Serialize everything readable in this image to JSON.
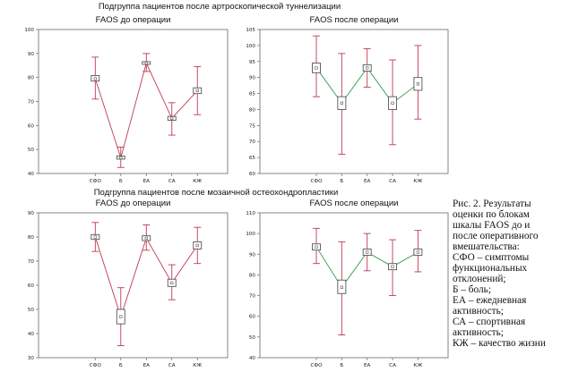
{
  "groups": [
    {
      "title": "Подгруппа пациентов после артроскопической туннелизации"
    },
    {
      "title": "Подгруппа пациентов после мозаичной остеохондропластики"
    }
  ],
  "colors": {
    "whisker": "#c0394f",
    "line_pre": "#c0394f",
    "line_post": "#2e9a4a",
    "box": "#555555"
  },
  "caption": {
    "lines": [
      "Рис. 2. Результаты",
      "оценки по блокам",
      "шкалы FAOS до и",
      "после оперативного",
      "вмешательства:",
      "СФО – симптомы",
      "функциональных",
      "отклонений;",
      "Б – боль;",
      "ЕА – ежедневная",
      "активность;",
      "СА – спортивная",
      "активность;",
      "КЖ – качество жизни"
    ]
  },
  "chart_data": [
    {
      "type": "box",
      "title": "FAOS до операции",
      "group": 0,
      "categories": [
        "СФО",
        "Б",
        "ЕА",
        "СА",
        "КЖ"
      ],
      "ylim": [
        40,
        100
      ],
      "yticks": [
        40,
        50,
        60,
        70,
        80,
        90,
        100
      ],
      "mean": [
        79.5,
        46.5,
        86,
        63,
        74.5
      ],
      "box_low": [
        78.5,
        46,
        85.5,
        62.2,
        73.3
      ],
      "box_high": [
        80.8,
        47.3,
        86.6,
        63.8,
        75.7
      ],
      "whisker_low": [
        71,
        42.5,
        82.5,
        56,
        64.5
      ],
      "whisker_high": [
        88.5,
        51,
        90,
        69.5,
        84.5
      ]
    },
    {
      "type": "box",
      "title": "FAOS после операции",
      "group": 0,
      "categories": [
        "СФО",
        "Б",
        "ЕА",
        "СА",
        "КЖ"
      ],
      "ylim": [
        60,
        105
      ],
      "yticks": [
        60,
        65,
        70,
        75,
        80,
        85,
        90,
        95,
        100,
        105
      ],
      "mean": [
        93,
        82,
        93,
        82,
        88
      ],
      "box_low": [
        91.5,
        80,
        92,
        80,
        86
      ],
      "box_high": [
        94.5,
        84,
        94,
        84,
        90
      ],
      "whisker_low": [
        84,
        66,
        87,
        69,
        77
      ],
      "whisker_high": [
        103,
        97.5,
        99,
        95.5,
        100
      ]
    },
    {
      "type": "box",
      "title": "FAOS до операции",
      "group": 1,
      "categories": [
        "СФО",
        "Б",
        "ЕА",
        "СА",
        "КЖ"
      ],
      "ylim": [
        30,
        90
      ],
      "yticks": [
        30,
        40,
        50,
        60,
        70,
        80,
        90
      ],
      "mean": [
        80,
        47,
        79.5,
        61,
        76.5
      ],
      "box_low": [
        79,
        44,
        78.5,
        59.5,
        75
      ],
      "box_high": [
        81,
        50,
        80.5,
        62.5,
        78
      ],
      "whisker_low": [
        74,
        35,
        74.5,
        54,
        69
      ],
      "whisker_high": [
        86,
        59,
        85,
        68.5,
        84
      ]
    },
    {
      "type": "box",
      "title": "FAOS после операции",
      "group": 1,
      "categories": [
        "СФО",
        "Б",
        "ЕА",
        "СА",
        "КЖ"
      ],
      "ylim": [
        40,
        110
      ],
      "yticks": [
        40,
        50,
        60,
        70,
        80,
        90,
        100,
        110
      ],
      "mean": [
        93.5,
        74,
        91,
        84,
        91
      ],
      "box_low": [
        92,
        71,
        89.5,
        82.5,
        89.5
      ],
      "box_high": [
        95,
        77.5,
        92.5,
        85.5,
        92.5
      ],
      "whisker_low": [
        85.5,
        51,
        82,
        70,
        81.5
      ],
      "whisker_high": [
        102.5,
        96,
        100,
        97,
        101.5
      ]
    }
  ]
}
